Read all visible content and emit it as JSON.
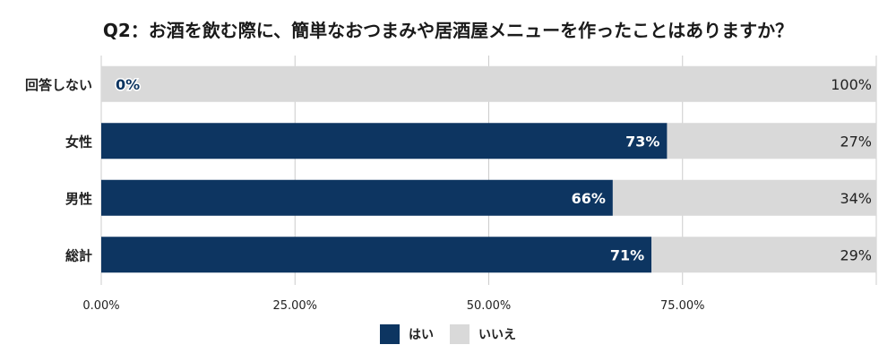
{
  "chart_data": {
    "type": "bar",
    "orientation": "horizontal",
    "stacked": true,
    "title": "Q2：お酒を飲む際に、簡単なおつまみや居酒屋メニューを作ったことはありますか？",
    "categories": [
      "回答しない",
      "女性",
      "男性",
      "総計"
    ],
    "series": [
      {
        "name": "はい",
        "values": [
          0,
          73,
          66,
          71
        ],
        "labels": [
          "0%",
          "73%",
          "66%",
          "71%"
        ],
        "color": "#0d3561"
      },
      {
        "name": "いいえ",
        "values": [
          100,
          27,
          34,
          29
        ],
        "labels": [
          "100%",
          "27%",
          "34%",
          "29%"
        ],
        "color": "#d9d9d9"
      }
    ],
    "xlim": [
      0,
      100
    ],
    "xticks": [
      0,
      25,
      50,
      75
    ],
    "xtick_labels": [
      "0.00%",
      "25.00%",
      "50.00%",
      "75.00%"
    ],
    "grid": true,
    "legend_position": "bottom"
  }
}
